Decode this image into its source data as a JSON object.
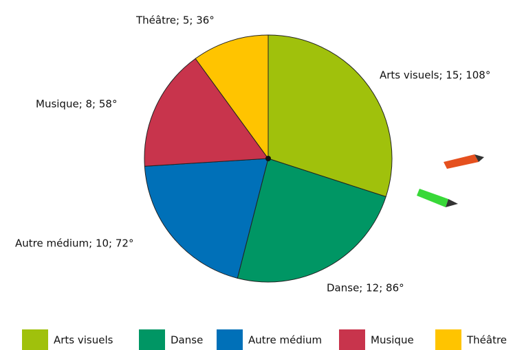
{
  "chart_data": {
    "type": "pie",
    "categories": [
      "Arts visuels",
      "Danse",
      "Autre médium",
      "Musique",
      "Théâtre"
    ],
    "values": [
      15,
      12,
      10,
      8,
      5
    ],
    "value_labels": [
      "Arts visuels; 15; 108°",
      "Danse; 12; 86°",
      "Autre médium; 10; 72°",
      "Musique; 8; 58°",
      "Théâtre; 5; 36°"
    ],
    "colors": [
      "#a0c10c",
      "#009664",
      "#0070b8",
      "#c8344c",
      "#ffc400"
    ],
    "legend": "bottom"
  }
}
